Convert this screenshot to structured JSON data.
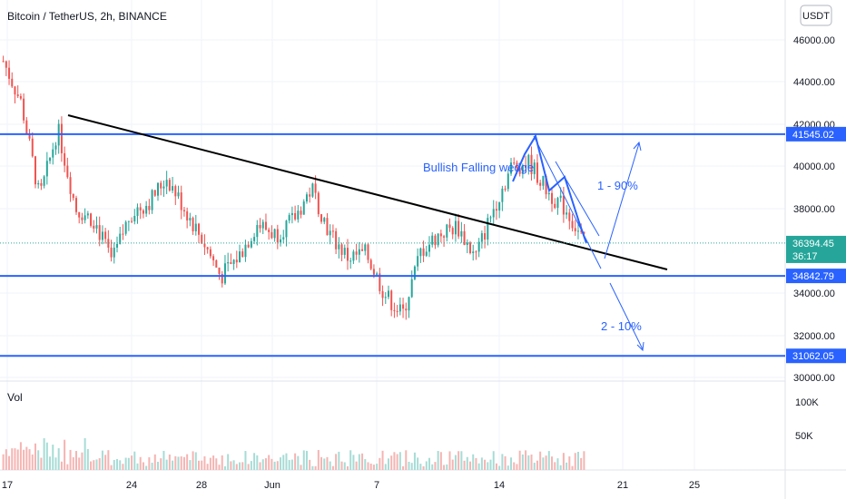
{
  "header": {
    "title": "Bitcoin / TetherUS, 2h, BINANCE",
    "currency_button": "USDT"
  },
  "colors": {
    "up": "#26a69a",
    "down": "#ef5350",
    "level": "#2962ff",
    "trend": "#000000",
    "price_tag": "#26a69a"
  },
  "chart_data": [
    {
      "type": "candlestick",
      "title": "Bitcoin / TetherUS, 2h, BINANCE",
      "ylim": [
        29800,
        47600
      ],
      "y_ticks": [
        "46000.00",
        "44000.00",
        "42000.00",
        "40000.00",
        "38000.00",
        "34000.00",
        "32000.00",
        "30000.00"
      ],
      "x_ticks": [
        "17",
        "24",
        "28",
        "Jun",
        "7",
        "14",
        "21",
        "25"
      ],
      "ohlc_series": [
        {
          "x": "May 17",
          "price": 45000
        },
        {
          "x": "May 18",
          "price": 43000
        },
        {
          "x": "May 19",
          "price": 38500
        },
        {
          "x": "May 20",
          "price": 41800
        },
        {
          "x": "May 21",
          "price": 38000
        },
        {
          "x": "May 22",
          "price": 37500
        },
        {
          "x": "May 23",
          "price": 35500
        },
        {
          "x": "May 24",
          "price": 37800
        },
        {
          "x": "May 25",
          "price": 38300
        },
        {
          "x": "May 26",
          "price": 39500
        },
        {
          "x": "May 27",
          "price": 38000
        },
        {
          "x": "May 28",
          "price": 36500
        },
        {
          "x": "May 29",
          "price": 34800
        },
        {
          "x": "May 30",
          "price": 35800
        },
        {
          "x": "May 31",
          "price": 37300
        },
        {
          "x": "Jun 1",
          "price": 36800
        },
        {
          "x": "Jun 2",
          "price": 37500
        },
        {
          "x": "Jun 3",
          "price": 39000
        },
        {
          "x": "Jun 4",
          "price": 36800
        },
        {
          "x": "Jun 5",
          "price": 35700
        },
        {
          "x": "Jun 6",
          "price": 35900
        },
        {
          "x": "Jun 7",
          "price": 34000
        },
        {
          "x": "Jun 8",
          "price": 33000
        },
        {
          "x": "Jun 9",
          "price": 36000
        },
        {
          "x": "Jun 10",
          "price": 36800
        },
        {
          "x": "Jun 11",
          "price": 37200
        },
        {
          "x": "Jun 12",
          "price": 35700
        },
        {
          "x": "Jun 13",
          "price": 38000
        },
        {
          "x": "Jun 14",
          "price": 40000
        },
        {
          "x": "Jun 15",
          "price": 40200
        },
        {
          "x": "Jun 16",
          "price": 38800
        },
        {
          "x": "Jun 17",
          "price": 38000
        },
        {
          "x": "Jun 18",
          "price": 36394
        }
      ],
      "levels": [
        {
          "value": 41545.02,
          "label": "41545.02"
        },
        {
          "value": 34842.79,
          "label": "34842.79"
        },
        {
          "value": 31062.05,
          "label": "31062.05"
        }
      ],
      "last_price": {
        "value": 36394.45,
        "label": "36394.45",
        "countdown": "36:17"
      },
      "annotations": [
        "Bullish Falling wedge",
        "1 - 90%",
        "2 - 10%"
      ]
    },
    {
      "type": "bar",
      "title": "Vol",
      "y_ticks": [
        "100K",
        "50K"
      ]
    }
  ]
}
